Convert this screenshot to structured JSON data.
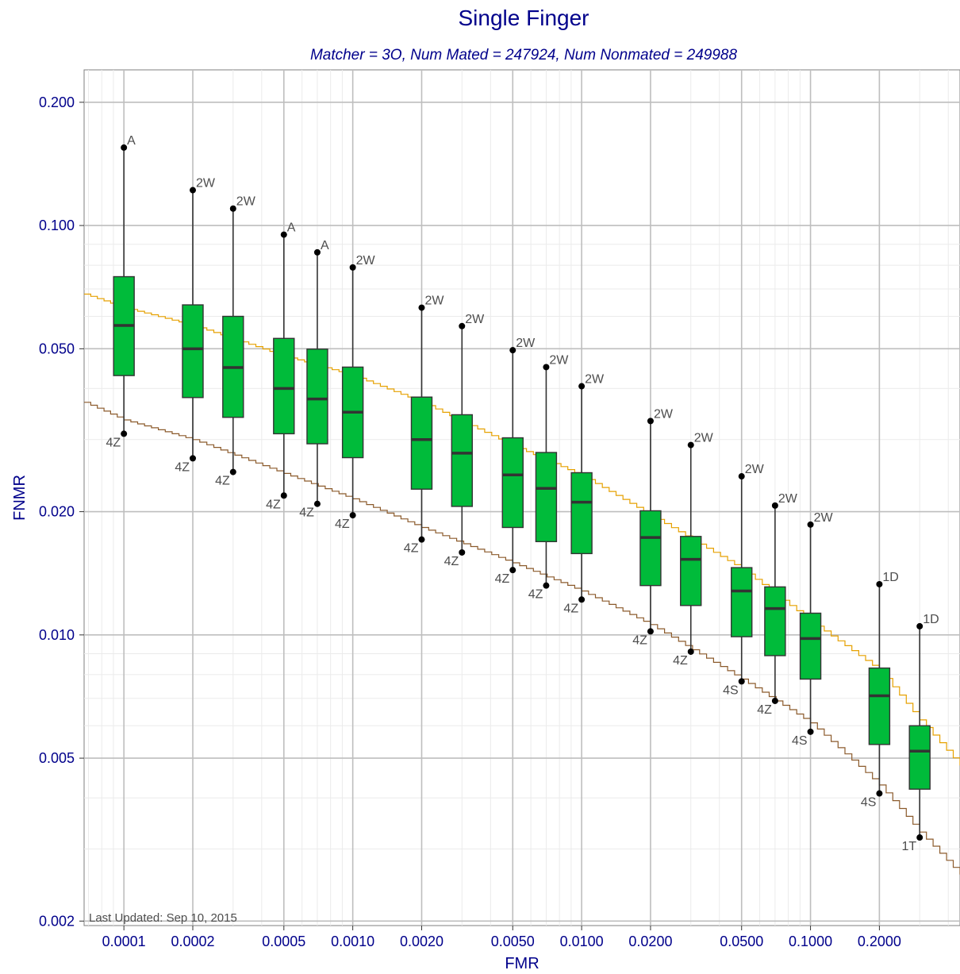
{
  "chart_data": {
    "type": "box",
    "title": "Single Finger",
    "subtitle": "Matcher = 3O,   Num Mated = 247924,   Num Nonmated = 249988",
    "xlabel": "FMR",
    "ylabel": "FNMR",
    "x_scale": "log",
    "y_scale": "log",
    "xlim": [
      6.7e-05,
      0.45
    ],
    "ylim": [
      0.00195,
      0.24
    ],
    "grid": true,
    "x_ticks": [
      {
        "value": 0.0001,
        "label": "0.0001"
      },
      {
        "value": 0.0002,
        "label": "0.0002"
      },
      {
        "value": 0.0005,
        "label": "0.0005"
      },
      {
        "value": 0.001,
        "label": "0.0010"
      },
      {
        "value": 0.002,
        "label": "0.0020"
      },
      {
        "value": 0.005,
        "label": "0.0050"
      },
      {
        "value": 0.01,
        "label": "0.0100"
      },
      {
        "value": 0.02,
        "label": "0.0200"
      },
      {
        "value": 0.05,
        "label": "0.0500"
      },
      {
        "value": 0.1,
        "label": "0.1000"
      },
      {
        "value": 0.2,
        "label": "0.2000"
      }
    ],
    "y_ticks": [
      {
        "value": 0.2,
        "label": "0.200"
      },
      {
        "value": 0.1,
        "label": "0.100"
      },
      {
        "value": 0.05,
        "label": "0.050"
      },
      {
        "value": 0.02,
        "label": "0.020"
      },
      {
        "value": 0.01,
        "label": "0.010"
      },
      {
        "value": 0.005,
        "label": "0.005"
      },
      {
        "value": 0.002,
        "label": "0.002"
      }
    ],
    "box_color": "#00bb3a",
    "boxes": [
      {
        "fmr": 0.0001,
        "min": 0.031,
        "q1": 0.043,
        "median": 0.057,
        "q3": 0.075,
        "max": 0.155,
        "max_label": "A",
        "min_label": "4Z"
      },
      {
        "fmr": 0.0002,
        "min": 0.027,
        "q1": 0.038,
        "median": 0.05,
        "q3": 0.064,
        "max": 0.122,
        "max_label": "2W",
        "min_label": "4Z"
      },
      {
        "fmr": 0.0003,
        "min": 0.025,
        "q1": 0.034,
        "median": 0.045,
        "q3": 0.06,
        "max": 0.11,
        "max_label": "2W",
        "min_label": "4Z"
      },
      {
        "fmr": 0.0005,
        "min": 0.0219,
        "q1": 0.031,
        "median": 0.04,
        "q3": 0.053,
        "max": 0.095,
        "max_label": "A",
        "min_label": "4Z"
      },
      {
        "fmr": 0.0007,
        "min": 0.0209,
        "q1": 0.0293,
        "median": 0.0377,
        "q3": 0.0499,
        "max": 0.086,
        "max_label": "A",
        "min_label": "4Z"
      },
      {
        "fmr": 0.001,
        "min": 0.0196,
        "q1": 0.0271,
        "median": 0.035,
        "q3": 0.0451,
        "max": 0.079,
        "max_label": "2W",
        "min_label": "4Z"
      },
      {
        "fmr": 0.002,
        "min": 0.0171,
        "q1": 0.0227,
        "median": 0.03,
        "q3": 0.0381,
        "max": 0.063,
        "max_label": "2W",
        "min_label": "4Z"
      },
      {
        "fmr": 0.003,
        "min": 0.0159,
        "q1": 0.0206,
        "median": 0.0278,
        "q3": 0.0345,
        "max": 0.0568,
        "max_label": "2W",
        "min_label": "4Z"
      },
      {
        "fmr": 0.005,
        "min": 0.0144,
        "q1": 0.0183,
        "median": 0.0246,
        "q3": 0.0303,
        "max": 0.0496,
        "max_label": "2W",
        "min_label": "4Z"
      },
      {
        "fmr": 0.007,
        "min": 0.0132,
        "q1": 0.0169,
        "median": 0.0228,
        "q3": 0.0279,
        "max": 0.0451,
        "max_label": "2W",
        "min_label": "4Z"
      },
      {
        "fmr": 0.01,
        "min": 0.0122,
        "q1": 0.0158,
        "median": 0.0211,
        "q3": 0.0249,
        "max": 0.0405,
        "max_label": "2W",
        "min_label": "4Z"
      },
      {
        "fmr": 0.02,
        "min": 0.0102,
        "q1": 0.0132,
        "median": 0.0173,
        "q3": 0.0201,
        "max": 0.0333,
        "max_label": "2W",
        "min_label": "4Z"
      },
      {
        "fmr": 0.03,
        "min": 0.0091,
        "q1": 0.0118,
        "median": 0.0153,
        "q3": 0.0174,
        "max": 0.0291,
        "max_label": "2W",
        "min_label": "4Z"
      },
      {
        "fmr": 0.05,
        "min": 0.0077,
        "q1": 0.0099,
        "median": 0.0128,
        "q3": 0.0146,
        "max": 0.0244,
        "max_label": "2W",
        "min_label": "4S"
      },
      {
        "fmr": 0.07,
        "min": 0.0069,
        "q1": 0.0089,
        "median": 0.0116,
        "q3": 0.0131,
        "max": 0.0207,
        "max_label": "2W",
        "min_label": "4Z"
      },
      {
        "fmr": 0.1,
        "min": 0.0058,
        "q1": 0.0078,
        "median": 0.0098,
        "q3": 0.0113,
        "max": 0.0186,
        "max_label": "2W",
        "min_label": "4S"
      },
      {
        "fmr": 0.2,
        "min": 0.0041,
        "q1": 0.0054,
        "median": 0.0071,
        "q3": 0.0083,
        "max": 0.0133,
        "max_label": "1D",
        "min_label": "4S"
      },
      {
        "fmr": 0.3,
        "min": 0.0032,
        "q1": 0.0042,
        "median": 0.0052,
        "q3": 0.006,
        "max": 0.0105,
        "max_label": "1D",
        "min_label": "1T"
      }
    ],
    "lines": [
      {
        "color": "#e6a100",
        "x": [
          6.7e-05,
          0.0001,
          0.0002,
          0.0005,
          0.001,
          0.002,
          0.005,
          0.01,
          0.02,
          0.05,
          0.1,
          0.2,
          0.3,
          0.45
        ],
        "y": [
          0.068,
          0.063,
          0.057,
          0.048,
          0.043,
          0.037,
          0.029,
          0.0245,
          0.0196,
          0.0145,
          0.0108,
          0.0082,
          0.0062,
          0.0048
        ]
      },
      {
        "color": "#8b5a2b",
        "x": [
          6.7e-05,
          0.0001,
          0.0002,
          0.0005,
          0.001,
          0.002,
          0.005,
          0.01,
          0.02,
          0.05,
          0.1,
          0.2,
          0.3,
          0.45
        ],
        "y": [
          0.037,
          0.0335,
          0.03,
          0.0248,
          0.0215,
          0.0183,
          0.015,
          0.0128,
          0.0106,
          0.0078,
          0.0061,
          0.0043,
          0.0033,
          0.0026
        ]
      }
    ]
  },
  "footnote": "Last Updated: Sep 10, 2015"
}
